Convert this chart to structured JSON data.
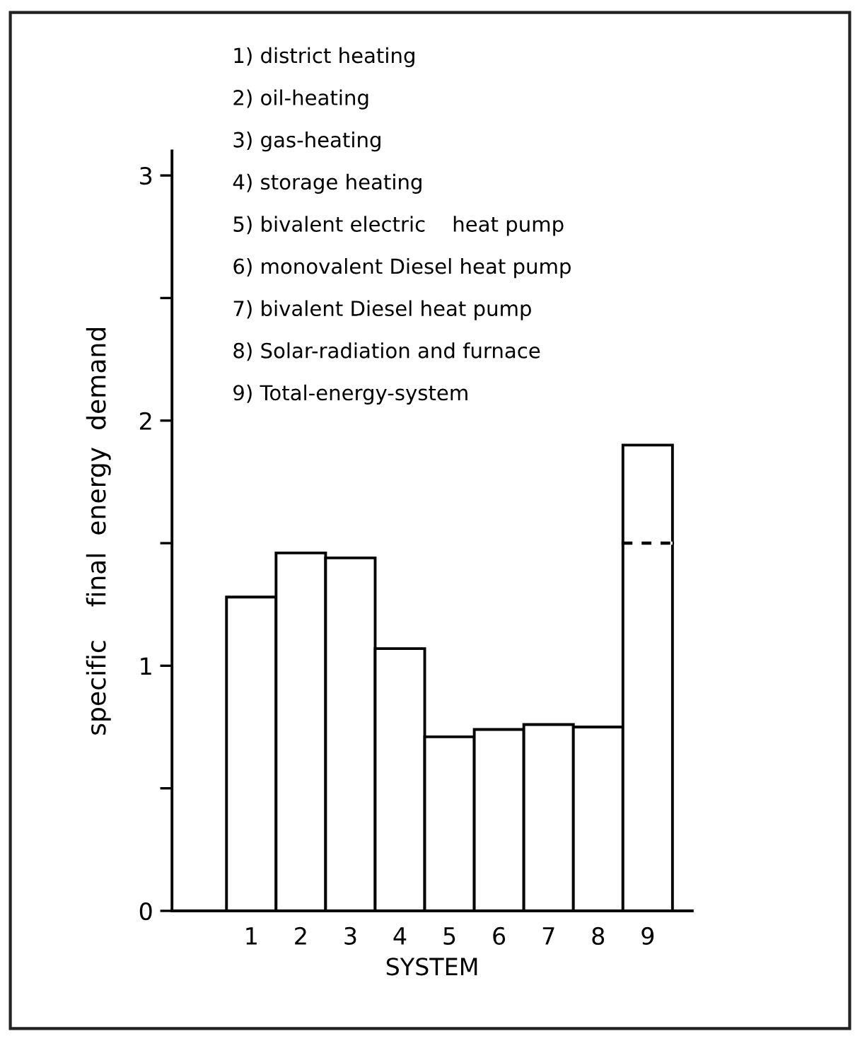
{
  "chart_data": {
    "type": "bar",
    "stacked": true,
    "xlabel": "SYSTEM",
    "ylabel": "specific    final  energy  demand",
    "categories": [
      "1",
      "2",
      "3",
      "4",
      "5",
      "6",
      "7",
      "8",
      "9"
    ],
    "series": [
      {
        "color": "#ffffff",
        "values": [
          1.28,
          1.46,
          1.44,
          1.07,
          0.71,
          0.74,
          0.76,
          0.75,
          1.5
        ]
      },
      {
        "color": "#ffffff",
        "line_style": "dashed",
        "values": [
          null,
          null,
          null,
          null,
          null,
          null,
          null,
          null,
          0.4
        ]
      }
    ],
    "ylim": [
      0,
      3.1
    ],
    "yticks": [
      0,
      1,
      2,
      3
    ],
    "grid": false,
    "legend": false,
    "annotations": [
      "1) district heating",
      "2) oil-heating",
      "3) gas-heating",
      "4) storage heating",
      "5) bivalent electric    heat pump",
      "6) monovalent Diesel heat pump",
      "7) bivalent Diesel heat pump",
      "8) Solar-radiation and furnace",
      "9) Total-energy-system"
    ]
  }
}
